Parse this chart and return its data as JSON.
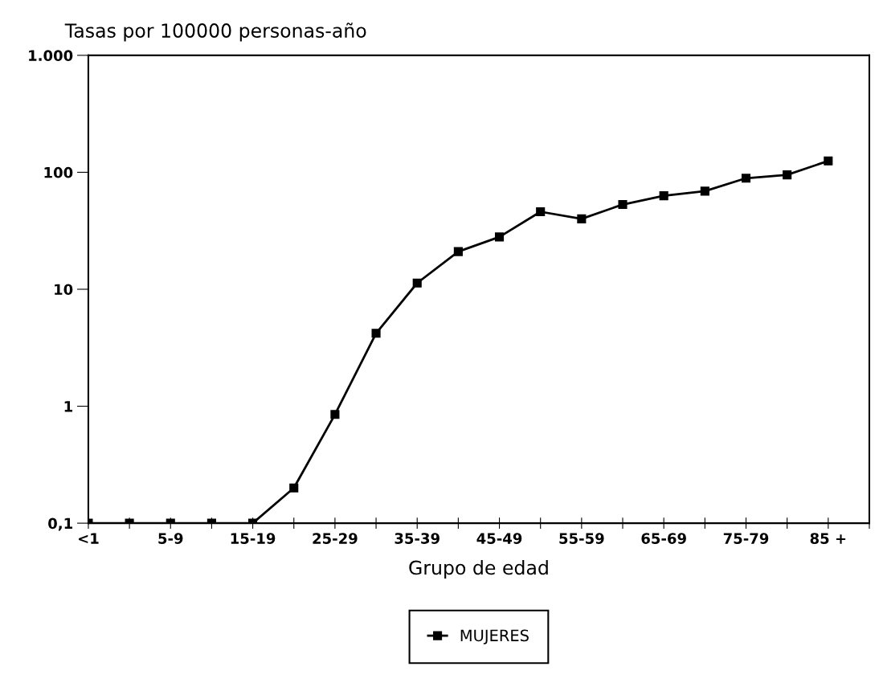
{
  "chart_data": {
    "type": "line",
    "title": "Tasas por 100000 personas-año",
    "xlabel": "Grupo de edad",
    "categories": [
      "<1",
      null,
      "5-9",
      null,
      "15-19",
      null,
      "25-29",
      null,
      "35-39",
      null,
      "45-49",
      null,
      "55-59",
      null,
      "65-69",
      null,
      "75-79",
      null,
      "85 +"
    ],
    "series": [
      {
        "name": "MUJERES",
        "color": "#000000",
        "values": [
          0.1,
          0.1,
          0.1,
          0.1,
          0.1,
          0.2,
          0.85,
          4.2,
          11.3,
          21,
          28,
          46,
          40,
          53,
          63,
          69,
          89,
          95,
          125
        ]
      }
    ],
    "log": "y",
    "ylim": [
      0.1,
      1000
    ],
    "yticks": [
      {
        "value": 0.1,
        "label": "0,1"
      },
      1,
      10,
      100,
      {
        "value": 1000,
        "label": "1.000"
      }
    ],
    "grid": false,
    "legend": "bottom",
    "marker": "square",
    "line_style": "solid"
  }
}
